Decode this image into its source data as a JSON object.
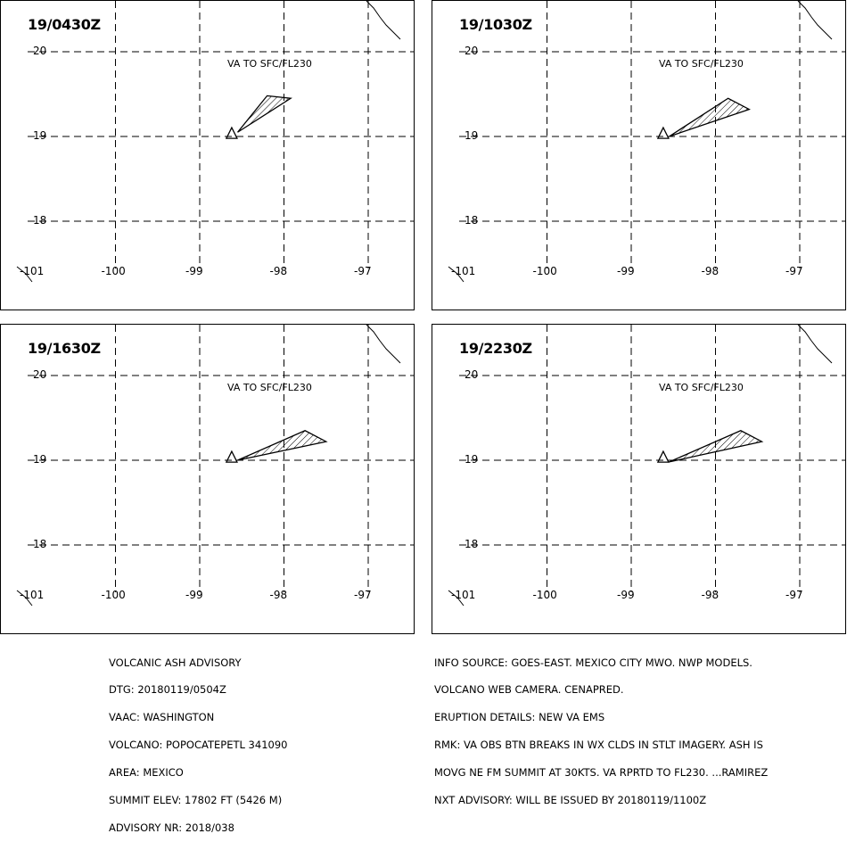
{
  "panels": [
    {
      "time": "19/0430Z",
      "level": "VA TO SFC/FL230",
      "ash_polygon": [
        [
          -98.55,
          19.05
        ],
        [
          -98.2,
          19.48
        ],
        [
          -97.92,
          19.45
        ]
      ]
    },
    {
      "time": "19/1030Z",
      "level": "VA TO SFC/FL230",
      "ash_polygon": [
        [
          -98.55,
          19.0
        ],
        [
          -97.85,
          19.45
        ],
        [
          -97.6,
          19.32
        ]
      ]
    },
    {
      "time": "19/1630Z",
      "level": "VA TO SFC/FL230",
      "ash_polygon": [
        [
          -98.55,
          19.0
        ],
        [
          -97.75,
          19.35
        ],
        [
          -97.5,
          19.22
        ]
      ]
    },
    {
      "time": "19/2230Z",
      "level": "VA TO SFC/FL230",
      "ash_polygon": [
        [
          -98.55,
          18.98
        ],
        [
          -97.7,
          19.35
        ],
        [
          -97.45,
          19.22
        ]
      ]
    }
  ],
  "axes": {
    "lon_labels": [
      "-101",
      "-100",
      "-99",
      "-98",
      "-97"
    ],
    "lat_labels": [
      "20",
      "19",
      "18"
    ],
    "lon_values": [
      -101,
      -100,
      -99,
      -98,
      -97
    ],
    "lat_values": [
      20,
      19,
      18
    ]
  },
  "volcano": {
    "lat": 19.02,
    "lon": -98.62
  },
  "advisory_left": [
    "VOLCANIC ASH ADVISORY",
    "DTG: 20180119/0504Z",
    "VAAC: WASHINGTON",
    "VOLCANO: POPOCATEPETL 341090",
    "AREA: MEXICO",
    "SUMMIT ELEV: 17802 FT (5426 M)",
    "ADVISORY NR: 2018/038"
  ],
  "advisory_right": [
    "INFO SOURCE: GOES-EAST. MEXICO CITY MWO. NWP MODELS.",
    "VOLCANO WEB CAMERA. CENAPRED.",
    "ERUPTION DETAILS: NEW VA EMS",
    "RMK: VA OBS BTN BREAKS IN WX CLDS IN STLT IMAGERY. ASH IS",
    "MOVG NE FM SUMMIT AT 30KTS. VA RPRTD TO FL230. ...RAMIREZ",
    "NXT ADVISORY: WILL BE ISSUED BY 20180119/1100Z"
  ],
  "colors": {
    "line": "#000000",
    "background": "#ffffff"
  }
}
